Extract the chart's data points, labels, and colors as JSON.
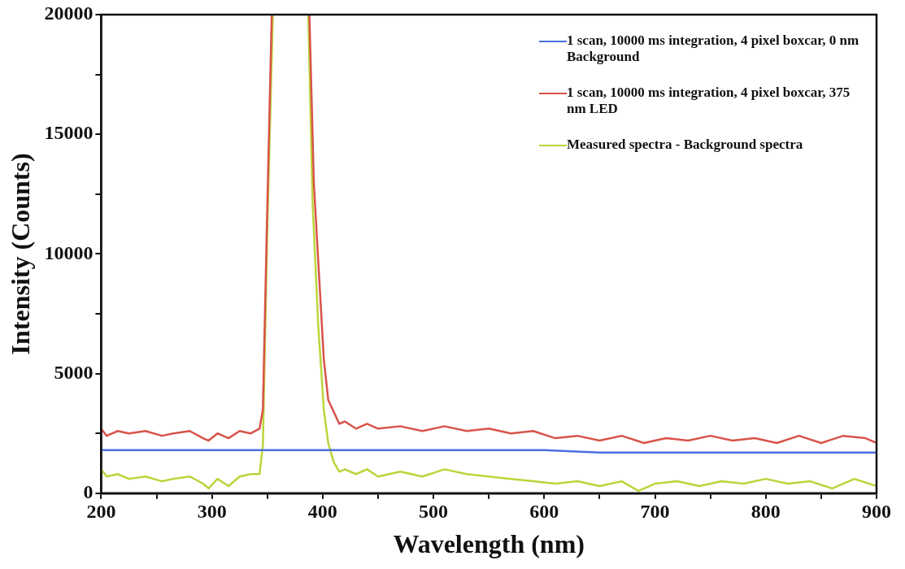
{
  "chart_data": {
    "type": "line",
    "xlabel": "Wavelength (nm)",
    "ylabel": "Intensity (Counts)",
    "xlim": [
      200,
      900
    ],
    "ylim": [
      0,
      20000
    ],
    "xticks": [
      200,
      {
        "value": 250,
        "label": null
      },
      300,
      {
        "value": 350,
        "label": null
      },
      400,
      {
        "value": 450,
        "label": null
      },
      500,
      {
        "value": 550,
        "label": null
      },
      600,
      {
        "value": 650,
        "label": null
      },
      700,
      {
        "value": 750,
        "label": null
      },
      800,
      {
        "value": 850,
        "label": null
      },
      900
    ],
    "yticks": [
      0,
      {
        "value": 2500,
        "label": null
      },
      5000,
      {
        "value": 7500,
        "label": null
      },
      10000,
      {
        "value": 12500,
        "label": null
      },
      15000,
      {
        "value": 17500,
        "label": null
      },
      20000
    ],
    "grid": false,
    "legend": "top right",
    "marker": "none",
    "line_style": "solid",
    "series": [
      {
        "name": "1 scan, 10000 ms integration, 4 pixel boxcar, 0 nm Background",
        "color": "#4a6fe0",
        "x": [
          200,
          250,
          300,
          350,
          400,
          450,
          500,
          550,
          600,
          650,
          700,
          750,
          800,
          850,
          900
        ],
        "values": [
          1800,
          1800,
          1800,
          1800,
          1800,
          1800,
          1800,
          1800,
          1800,
          1700,
          1700,
          1700,
          1700,
          1700,
          1700
        ]
      },
      {
        "name": "1 scan, 10000 ms integration, 4 pixel boxcar, 375 nm LED",
        "color": "#d9534a",
        "x": [
          200,
          205,
          215,
          225,
          240,
          255,
          265,
          280,
          292,
          297,
          305,
          315,
          325,
          335,
          343,
          346,
          350,
          354,
          370,
          388,
          392,
          396,
          401,
          405,
          410,
          415,
          420,
          430,
          440,
          450,
          470,
          490,
          510,
          530,
          550,
          570,
          590,
          610,
          630,
          650,
          670,
          690,
          710,
          730,
          750,
          770,
          790,
          810,
          830,
          850,
          870,
          890,
          900
        ],
        "values": [
          2700,
          2400,
          2600,
          2500,
          2600,
          2400,
          2500,
          2600,
          2300,
          2200,
          2500,
          2300,
          2600,
          2500,
          2700,
          3500,
          12000,
          20000,
          null,
          20000,
          13000,
          9700,
          5600,
          3900,
          3400,
          2900,
          3000,
          2700,
          2900,
          2700,
          2800,
          2600,
          2800,
          2600,
          2700,
          2500,
          2600,
          2300,
          2400,
          2200,
          2400,
          2100,
          2300,
          2200,
          2400,
          2200,
          2300,
          2100,
          2400,
          2100,
          2400,
          2300,
          2100
        ]
      },
      {
        "name": "Measured spectra - Background spectra",
        "color": "#bcd43a",
        "x": [
          200,
          205,
          215,
          225,
          240,
          255,
          265,
          280,
          292,
          297,
          305,
          315,
          325,
          335,
          343,
          346,
          350,
          355,
          370,
          387,
          391,
          396,
          401,
          405,
          410,
          415,
          420,
          430,
          440,
          450,
          470,
          490,
          510,
          530,
          550,
          570,
          590,
          610,
          630,
          650,
          670,
          685,
          700,
          720,
          740,
          760,
          780,
          800,
          820,
          840,
          860,
          880,
          900
        ],
        "values": [
          1000,
          700,
          800,
          600,
          700,
          500,
          600,
          700,
          400,
          200,
          600,
          300,
          700,
          800,
          800,
          2000,
          11000,
          20000,
          null,
          20000,
          12000,
          7000,
          3500,
          2100,
          1300,
          900,
          1000,
          800,
          1000,
          700,
          900,
          700,
          1000,
          800,
          700,
          600,
          500,
          400,
          500,
          300,
          500,
          100,
          400,
          500,
          300,
          500,
          400,
          600,
          400,
          500,
          200,
          600,
          300
        ]
      }
    ]
  }
}
